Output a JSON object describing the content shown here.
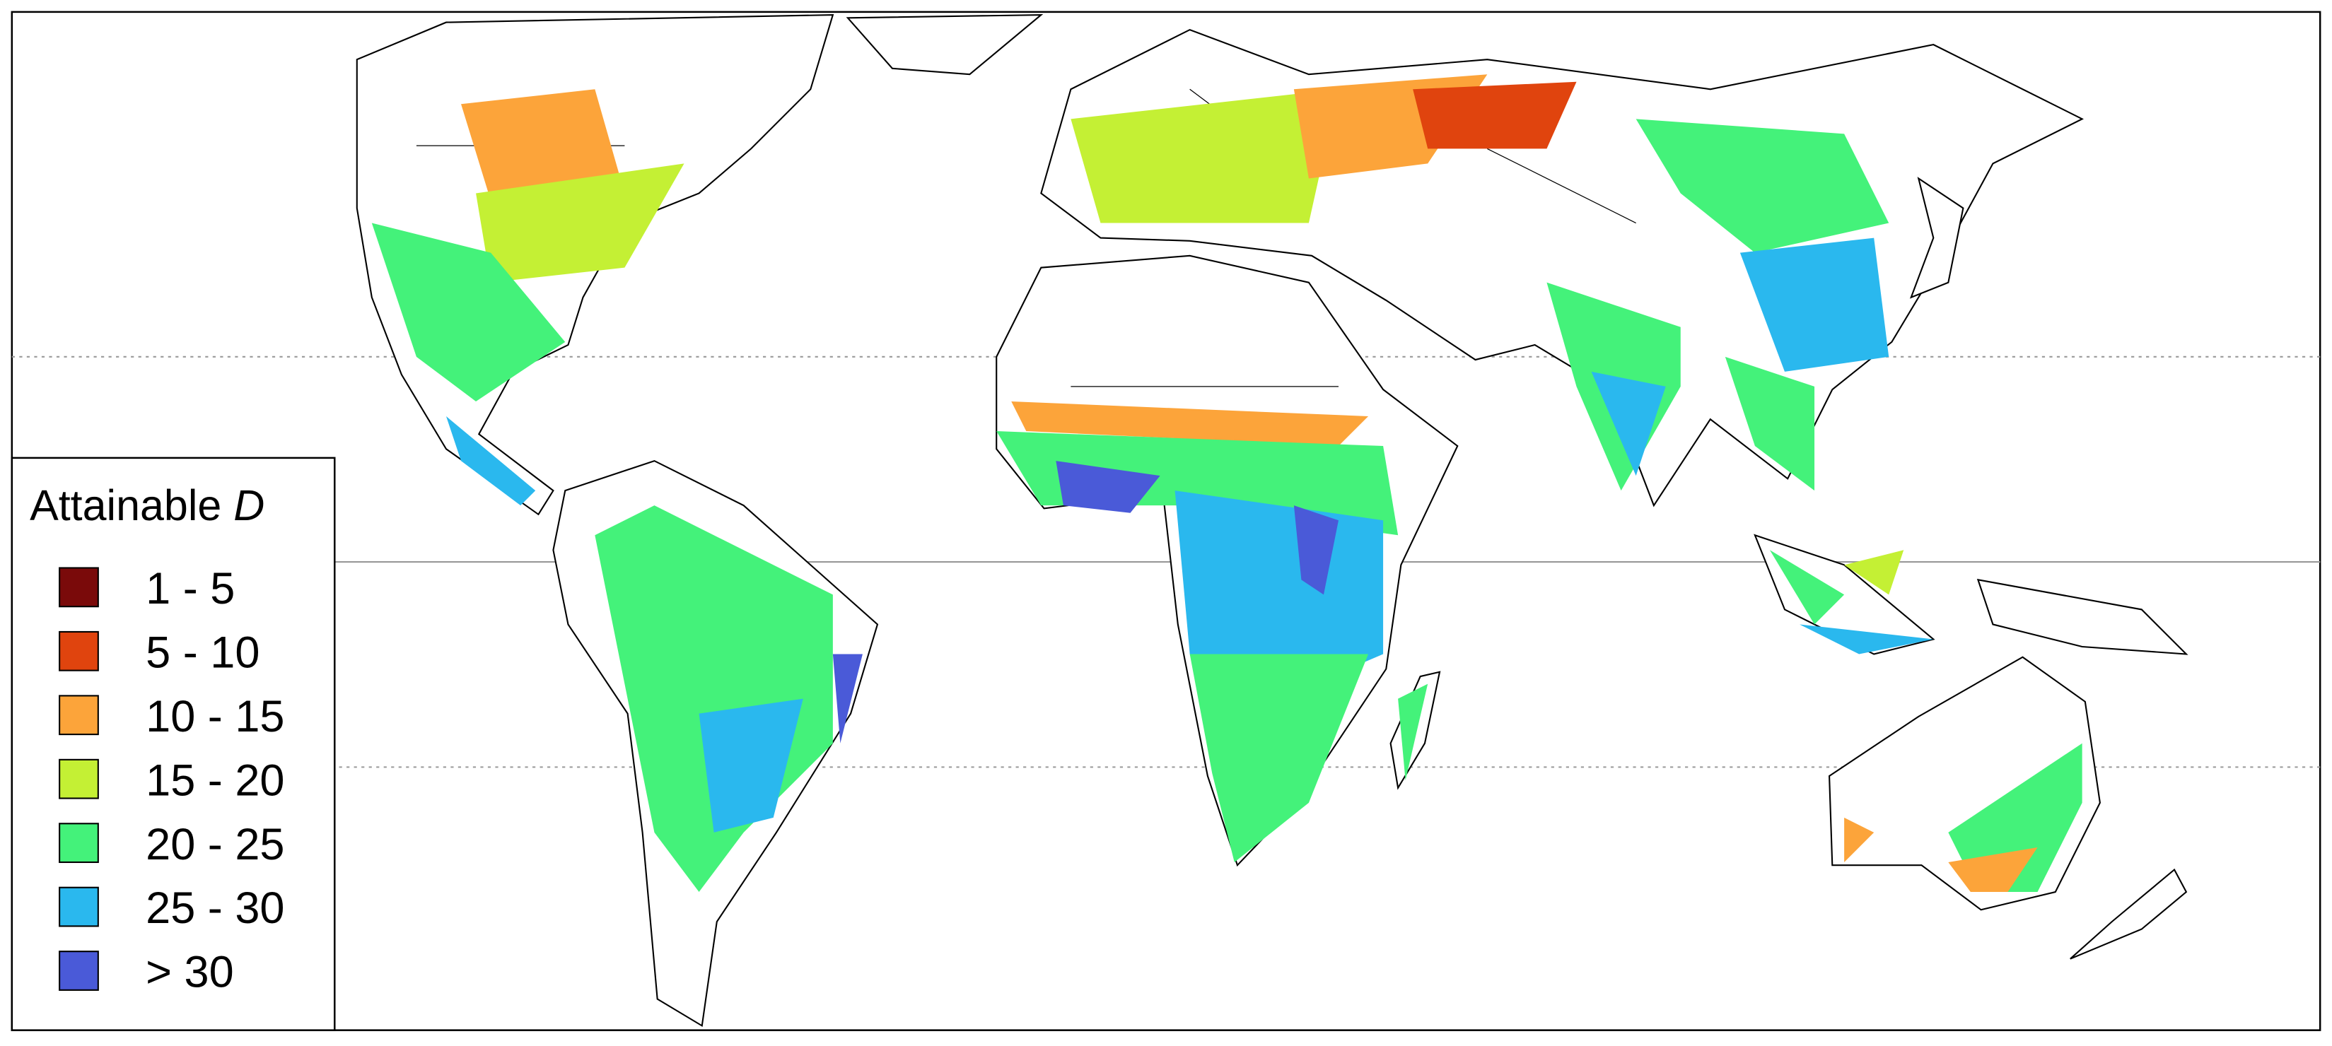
{
  "legend": {
    "title": {
      "text": "Attainable ",
      "italic": "D"
    },
    "items": [
      {
        "label": "1 - 5",
        "color": "#7a0a0a"
      },
      {
        "label": "5 - 10",
        "color": "#e0440e"
      },
      {
        "label": "10 - 15",
        "color": "#fca43a"
      },
      {
        "label": "15 - 20",
        "color": "#c4f034"
      },
      {
        "label": "20 - 25",
        "color": "#44f27a"
      },
      {
        "label": "25 - 30",
        "color": "#2ab8ee"
      },
      {
        "label": "> 30",
        "color": "#4a5ad8"
      }
    ]
  }
}
